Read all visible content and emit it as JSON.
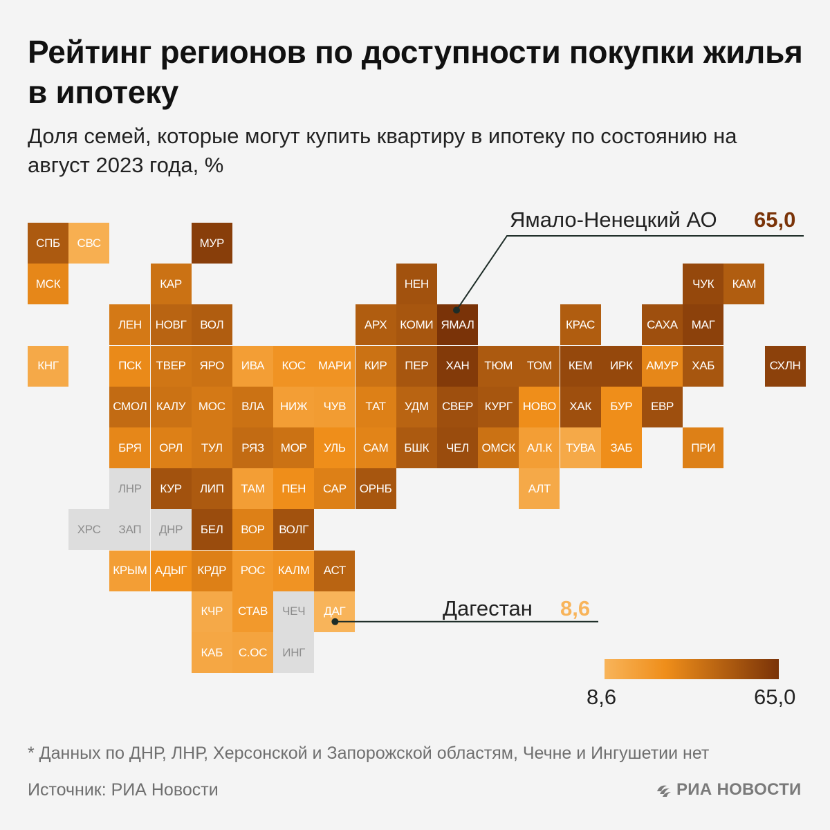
{
  "title": "Рейтинг регионов по доступности покупки жилья в ипотеку",
  "subtitle": "Доля семей, которые могут купить квартиру в ипотеку по состоянию на август 2023 года, %",
  "colors": {
    "min": "#f8b45a",
    "mid": "#ef8e1a",
    "max": "#7a3308",
    "no_data": "#dddddd",
    "line": "#1d2c27"
  },
  "map_data": {
    "type": "tile-choropleth",
    "scale_min": 8.6,
    "scale_max": 65.0,
    "tiles": [
      {
        "code": "СПБ",
        "col": 0,
        "row": 0,
        "level": 0.72
      },
      {
        "code": "СВС",
        "col": 1,
        "row": 0,
        "level": 0.05
      },
      {
        "code": "МУР",
        "col": 4,
        "row": 0,
        "level": 0.92
      },
      {
        "code": "МСК",
        "col": 0,
        "row": 1,
        "level": 0.4
      },
      {
        "code": "КАР",
        "col": 3,
        "row": 1,
        "level": 0.55
      },
      {
        "code": "НЕН",
        "col": 9,
        "row": 1,
        "level": 0.78
      },
      {
        "code": "ЧУК",
        "col": 16,
        "row": 1,
        "level": 0.85
      },
      {
        "code": "КАМ",
        "col": 17,
        "row": 1,
        "level": 0.7
      },
      {
        "code": "ЛЕН",
        "col": 2,
        "row": 2,
        "level": 0.5
      },
      {
        "code": "НОВГ",
        "col": 3,
        "row": 2,
        "level": 0.65
      },
      {
        "code": "ВОЛ",
        "col": 4,
        "row": 2,
        "level": 0.7
      },
      {
        "code": "АРХ",
        "col": 8,
        "row": 2,
        "level": 0.7
      },
      {
        "code": "КОМИ",
        "col": 9,
        "row": 2,
        "level": 0.75
      },
      {
        "code": "ЯМАЛ",
        "col": 10,
        "row": 2,
        "level": 1.0
      },
      {
        "code": "КРАС",
        "col": 13,
        "row": 2,
        "level": 0.7
      },
      {
        "code": "САХА",
        "col": 15,
        "row": 2,
        "level": 0.8
      },
      {
        "code": "МАГ",
        "col": 16,
        "row": 2,
        "level": 0.9
      },
      {
        "code": "КНГ",
        "col": 0,
        "row": 3,
        "level": 0.1
      },
      {
        "code": "ПСК",
        "col": 2,
        "row": 3,
        "level": 0.38
      },
      {
        "code": "ТВЕР",
        "col": 3,
        "row": 3,
        "level": 0.52
      },
      {
        "code": "ЯРО",
        "col": 4,
        "row": 3,
        "level": 0.55
      },
      {
        "code": "ИВА",
        "col": 5,
        "row": 3,
        "level": 0.2
      },
      {
        "code": "КОС",
        "col": 6,
        "row": 3,
        "level": 0.3
      },
      {
        "code": "МАРИ",
        "col": 7,
        "row": 3,
        "level": 0.3
      },
      {
        "code": "КИР",
        "col": 8,
        "row": 3,
        "level": 0.55
      },
      {
        "code": "ПЕР",
        "col": 9,
        "row": 3,
        "level": 0.75
      },
      {
        "code": "ХАН",
        "col": 10,
        "row": 3,
        "level": 0.95
      },
      {
        "code": "ТЮМ",
        "col": 11,
        "row": 3,
        "level": 0.72
      },
      {
        "code": "ТОМ",
        "col": 12,
        "row": 3,
        "level": 0.72
      },
      {
        "code": "КЕМ",
        "col": 13,
        "row": 3,
        "level": 0.85
      },
      {
        "code": "ИРК",
        "col": 14,
        "row": 3,
        "level": 0.85
      },
      {
        "code": "АМУР",
        "col": 15,
        "row": 3,
        "level": 0.4
      },
      {
        "code": "ХАБ",
        "col": 16,
        "row": 3,
        "level": 0.75
      },
      {
        "code": "СХЛН",
        "col": 18,
        "row": 3,
        "level": 0.9
      },
      {
        "code": "СМОЛ",
        "col": 2,
        "row": 4,
        "level": 0.6
      },
      {
        "code": "КАЛУ",
        "col": 3,
        "row": 4,
        "level": 0.55
      },
      {
        "code": "МОС",
        "col": 4,
        "row": 4,
        "level": 0.5
      },
      {
        "code": "ВЛА",
        "col": 5,
        "row": 4,
        "level": 0.55
      },
      {
        "code": "НИЖ",
        "col": 6,
        "row": 4,
        "level": 0.2
      },
      {
        "code": "ЧУВ",
        "col": 7,
        "row": 4,
        "level": 0.22
      },
      {
        "code": "ТАТ",
        "col": 8,
        "row": 4,
        "level": 0.45
      },
      {
        "code": "УДМ",
        "col": 9,
        "row": 4,
        "level": 0.65
      },
      {
        "code": "СВЕР",
        "col": 10,
        "row": 4,
        "level": 0.8
      },
      {
        "code": "КУРГ",
        "col": 11,
        "row": 4,
        "level": 0.75
      },
      {
        "code": "НОВО",
        "col": 12,
        "row": 4,
        "level": 0.35
      },
      {
        "code": "ХАК",
        "col": 13,
        "row": 4,
        "level": 0.8
      },
      {
        "code": "БУР",
        "col": 14,
        "row": 4,
        "level": 0.35
      },
      {
        "code": "ЕВР",
        "col": 15,
        "row": 4,
        "level": 0.8
      },
      {
        "code": "БРЯ",
        "col": 2,
        "row": 5,
        "level": 0.4
      },
      {
        "code": "ОРЛ",
        "col": 3,
        "row": 5,
        "level": 0.45
      },
      {
        "code": "ТУЛ",
        "col": 4,
        "row": 5,
        "level": 0.5
      },
      {
        "code": "РЯЗ",
        "col": 5,
        "row": 5,
        "level": 0.6
      },
      {
        "code": "МОР",
        "col": 6,
        "row": 5,
        "level": 0.55
      },
      {
        "code": "УЛЬ",
        "col": 7,
        "row": 5,
        "level": 0.35
      },
      {
        "code": "САМ",
        "col": 8,
        "row": 5,
        "level": 0.42
      },
      {
        "code": "БШК",
        "col": 9,
        "row": 5,
        "level": 0.72
      },
      {
        "code": "ЧЕЛ",
        "col": 10,
        "row": 5,
        "level": 0.82
      },
      {
        "code": "ОМСК",
        "col": 11,
        "row": 5,
        "level": 0.55
      },
      {
        "code": "АЛ.К",
        "col": 12,
        "row": 5,
        "level": 0.2
      },
      {
        "code": "ТУВА",
        "col": 13,
        "row": 5,
        "level": 0.1
      },
      {
        "code": "ЗАБ",
        "col": 14,
        "row": 5,
        "level": 0.35
      },
      {
        "code": "ПРИ",
        "col": 16,
        "row": 5,
        "level": 0.45
      },
      {
        "code": "ЛНР",
        "col": 2,
        "row": 6,
        "level": null
      },
      {
        "code": "КУР",
        "col": 3,
        "row": 6,
        "level": 0.78
      },
      {
        "code": "ЛИП",
        "col": 4,
        "row": 6,
        "level": 0.72
      },
      {
        "code": "ТАМ",
        "col": 5,
        "row": 6,
        "level": 0.2
      },
      {
        "code": "ПЕН",
        "col": 6,
        "row": 6,
        "level": 0.35
      },
      {
        "code": "САР",
        "col": 7,
        "row": 6,
        "level": 0.45
      },
      {
        "code": "ОРНБ",
        "col": 8,
        "row": 6,
        "level": 0.75
      },
      {
        "code": "АЛТ",
        "col": 12,
        "row": 6,
        "level": 0.1
      },
      {
        "code": "ХРС",
        "col": 1,
        "row": 7,
        "level": null
      },
      {
        "code": "ЗАП",
        "col": 2,
        "row": 7,
        "level": null
      },
      {
        "code": "ДНР",
        "col": 3,
        "row": 7,
        "level": null
      },
      {
        "code": "БЕЛ",
        "col": 4,
        "row": 7,
        "level": 0.82
      },
      {
        "code": "ВОР",
        "col": 5,
        "row": 7,
        "level": 0.45
      },
      {
        "code": "ВОЛГ",
        "col": 6,
        "row": 7,
        "level": 0.78
      },
      {
        "code": "КРЫМ",
        "col": 2,
        "row": 8,
        "level": 0.2
      },
      {
        "code": "АДЫГ",
        "col": 3,
        "row": 8,
        "level": 0.35
      },
      {
        "code": "КРДР",
        "col": 4,
        "row": 8,
        "level": 0.45
      },
      {
        "code": "РОС",
        "col": 5,
        "row": 8,
        "level": 0.25
      },
      {
        "code": "КАЛМ",
        "col": 6,
        "row": 8,
        "level": 0.3
      },
      {
        "code": "АСТ",
        "col": 7,
        "row": 8,
        "level": 0.65
      },
      {
        "code": "КЧР",
        "col": 4,
        "row": 9,
        "level": 0.1
      },
      {
        "code": "СТАВ",
        "col": 5,
        "row": 9,
        "level": 0.25
      },
      {
        "code": "ЧЕЧ",
        "col": 6,
        "row": 9,
        "level": null
      },
      {
        "code": "ДАГ",
        "col": 7,
        "row": 9,
        "level": 0.0
      },
      {
        "code": "КАБ",
        "col": 4,
        "row": 10,
        "level": 0.12
      },
      {
        "code": "С.ОС",
        "col": 5,
        "row": 10,
        "level": 0.15
      },
      {
        "code": "ИНГ",
        "col": 6,
        "row": 10,
        "level": null
      }
    ],
    "callouts": [
      {
        "label": "Ямало-Ненецкий АО",
        "value": "65,0",
        "tile": "ЯМАЛ"
      },
      {
        "label": "Дагестан",
        "value": "8,6",
        "tile": "ДАГ"
      }
    ]
  },
  "legend": {
    "min_label": "8,6",
    "max_label": "65,0"
  },
  "footnote": "* Данных по ДНР, ЛНР, Херсонской и Запорожской областям, Чечне и Ингушетии нет",
  "source": "Источник: РИА Новости",
  "logo_text": "РИА НОВОСТИ"
}
